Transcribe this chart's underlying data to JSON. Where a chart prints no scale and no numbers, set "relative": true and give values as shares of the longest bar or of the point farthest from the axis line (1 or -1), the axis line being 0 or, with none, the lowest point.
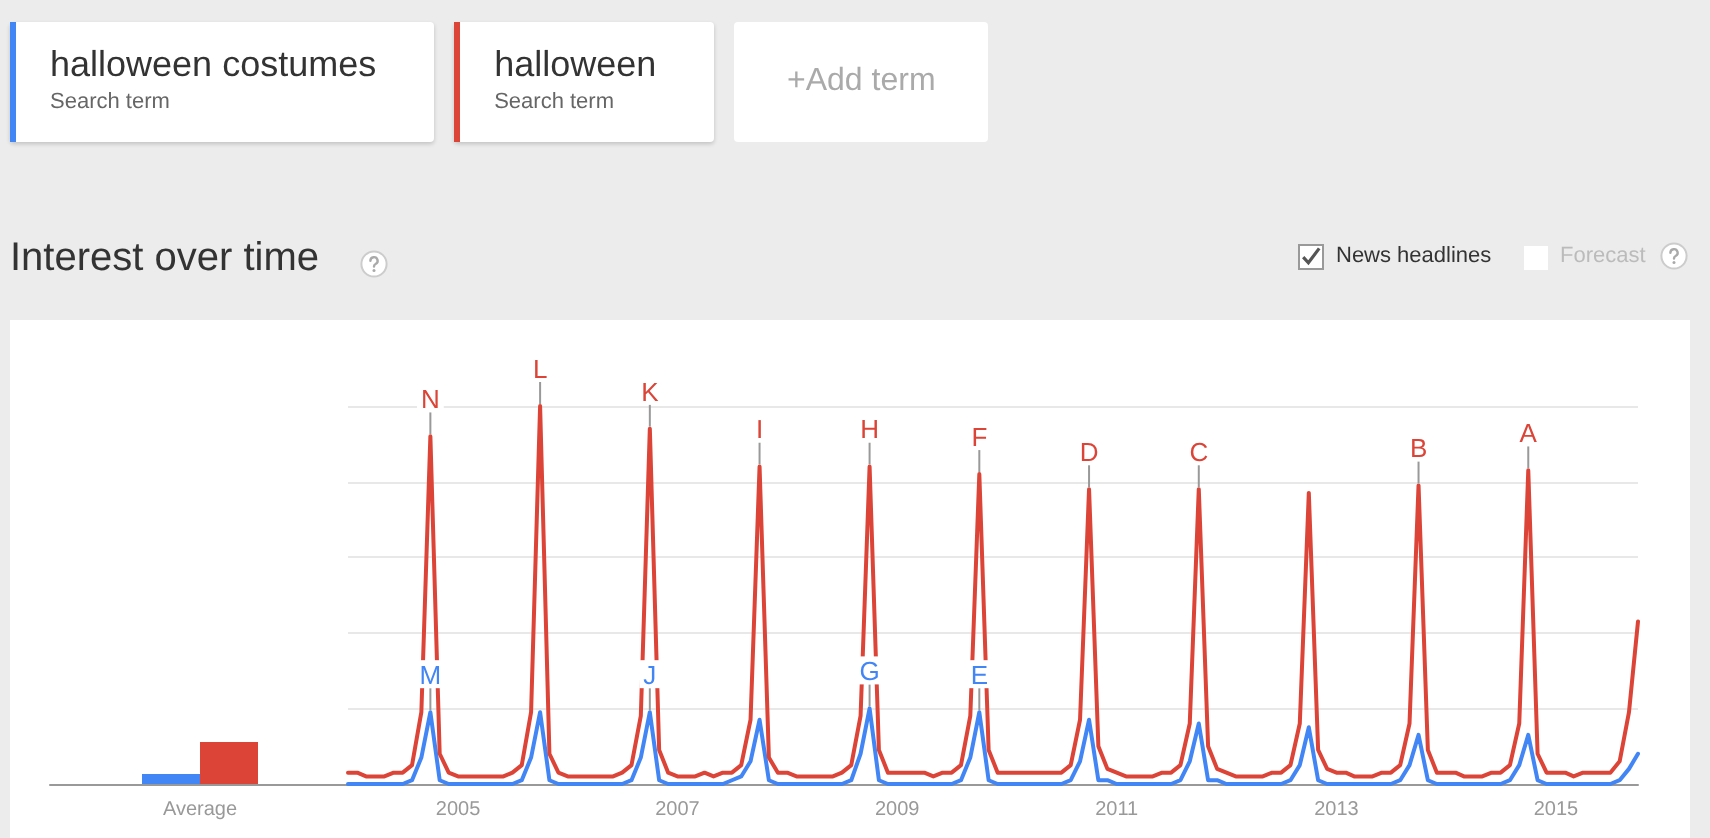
{
  "chart_data": [
    {
      "type": "bar",
      "categories": [
        "Average"
      ],
      "relative": true,
      "series": [
        {
          "color": "#4285f4",
          "values": [
            0.24
          ]
        },
        {
          "color": "#db4437",
          "values": [
            1
          ]
        }
      ]
    },
    {
      "type": "line",
      "title": "Interest over time",
      "relative": true,
      "grid": "y",
      "marker": "none",
      "legend": "top left",
      "annotations": [
        "Search term",
        "Search term",
        "+Add term",
        "News headlines",
        "Forecast",
        {
          "text": "N",
          "x": "2004-10",
          "y": 0.92
        },
        {
          "text": "M",
          "x": "2004-10",
          "y": 0.19
        },
        {
          "text": "L",
          "x": "2005-10",
          "y": 1.0
        },
        {
          "text": "K",
          "x": "2006-10",
          "y": 0.94
        },
        {
          "text": "J",
          "x": "2006-10",
          "y": 0.19
        },
        {
          "text": "I",
          "x": "2007-10",
          "y": 0.84
        },
        {
          "text": "H",
          "x": "2008-10",
          "y": 0.84
        },
        {
          "text": "G",
          "x": "2008-10",
          "y": 0.2
        },
        {
          "text": "F",
          "x": "2009-10",
          "y": 0.82
        },
        {
          "text": "E",
          "x": "2009-10",
          "y": 0.19
        },
        {
          "text": "D",
          "x": "2010-10",
          "y": 0.78
        },
        {
          "text": "C",
          "x": "2011-10",
          "y": 0.78
        },
        {
          "text": "B",
          "x": "2013-10",
          "y": 0.79
        },
        {
          "text": "A",
          "x": "2014-10",
          "y": 0.83
        }
      ],
      "xlim": [
        "2004-01",
        "2015-10"
      ],
      "xticks": [
        "2005",
        "2007",
        "2009",
        "2011",
        "2013",
        "2015"
      ],
      "x": [
        "2004-01",
        "2004-02",
        "2004-03",
        "2004-04",
        "2004-05",
        "2004-06",
        "2004-07",
        "2004-08",
        "2004-09",
        "2004-10",
        "2004-11",
        "2004-12",
        "2005-01",
        "2005-02",
        "2005-03",
        "2005-04",
        "2005-05",
        "2005-06",
        "2005-07",
        "2005-08",
        "2005-09",
        "2005-10",
        "2005-11",
        "2005-12",
        "2006-01",
        "2006-02",
        "2006-03",
        "2006-04",
        "2006-05",
        "2006-06",
        "2006-07",
        "2006-08",
        "2006-09",
        "2006-10",
        "2006-11",
        "2006-12",
        "2007-01",
        "2007-02",
        "2007-03",
        "2007-04",
        "2007-05",
        "2007-06",
        "2007-07",
        "2007-08",
        "2007-09",
        "2007-10",
        "2007-11",
        "2007-12",
        "2008-01",
        "2008-02",
        "2008-03",
        "2008-04",
        "2008-05",
        "2008-06",
        "2008-07",
        "2008-08",
        "2008-09",
        "2008-10",
        "2008-11",
        "2008-12",
        "2009-01",
        "2009-02",
        "2009-03",
        "2009-04",
        "2009-05",
        "2009-06",
        "2009-07",
        "2009-08",
        "2009-09",
        "2009-10",
        "2009-11",
        "2009-12",
        "2010-01",
        "2010-02",
        "2010-03",
        "2010-04",
        "2010-05",
        "2010-06",
        "2010-07",
        "2010-08",
        "2010-09",
        "2010-10",
        "2010-11",
        "2010-12",
        "2011-01",
        "2011-02",
        "2011-03",
        "2011-04",
        "2011-05",
        "2011-06",
        "2011-07",
        "2011-08",
        "2011-09",
        "2011-10",
        "2011-11",
        "2011-12",
        "2012-01",
        "2012-02",
        "2012-03",
        "2012-04",
        "2012-05",
        "2012-06",
        "2012-07",
        "2012-08",
        "2012-09",
        "2012-10",
        "2012-11",
        "2012-12",
        "2013-01",
        "2013-02",
        "2013-03",
        "2013-04",
        "2013-05",
        "2013-06",
        "2013-07",
        "2013-08",
        "2013-09",
        "2013-10",
        "2013-11",
        "2013-12",
        "2014-01",
        "2014-02",
        "2014-03",
        "2014-04",
        "2014-05",
        "2014-06",
        "2014-07",
        "2014-08",
        "2014-09",
        "2014-10",
        "2014-11",
        "2014-12",
        "2015-01",
        "2015-02",
        "2015-03",
        "2015-04",
        "2015-05",
        "2015-06",
        "2015-07",
        "2015-08",
        "2015-09",
        "2015-10"
      ],
      "series": [
        {
          "name": "halloween costumes",
          "color": "#4285f4",
          "values": [
            0,
            0,
            0,
            0,
            0,
            0,
            0,
            0.01,
            0.07,
            0.19,
            0.01,
            0,
            0,
            0,
            0,
            0,
            0,
            0,
            0,
            0.01,
            0.07,
            0.19,
            0.01,
            0,
            0,
            0,
            0,
            0,
            0,
            0,
            0,
            0.01,
            0.07,
            0.19,
            0.01,
            0,
            0,
            0,
            0,
            0,
            0,
            0,
            0.01,
            0.02,
            0.06,
            0.17,
            0.01,
            0,
            0,
            0,
            0,
            0,
            0,
            0,
            0,
            0.01,
            0.08,
            0.2,
            0.01,
            0,
            0,
            0,
            0,
            0,
            0,
            0,
            0,
            0.01,
            0.07,
            0.19,
            0.01,
            0,
            0,
            0,
            0,
            0,
            0,
            0,
            0,
            0.01,
            0.06,
            0.17,
            0.01,
            0.01,
            0,
            0,
            0,
            0,
            0,
            0,
            0,
            0.01,
            0.06,
            0.16,
            0.01,
            0.01,
            0,
            0,
            0,
            0,
            0,
            0,
            0,
            0.01,
            0.05,
            0.15,
            0.01,
            0,
            0,
            0,
            0,
            0,
            0,
            0,
            0,
            0.01,
            0.05,
            0.13,
            0.01,
            0,
            0,
            0,
            0,
            0,
            0,
            0,
            0,
            0.01,
            0.05,
            0.13,
            0.01,
            0,
            0,
            0,
            0,
            0,
            0,
            0,
            0,
            0.01,
            0.04,
            0.08
          ]
        },
        {
          "name": "halloween",
          "color": "#db4437",
          "values": [
            0.03,
            0.03,
            0.02,
            0.02,
            0.02,
            0.03,
            0.03,
            0.05,
            0.19,
            0.92,
            0.08,
            0.03,
            0.02,
            0.02,
            0.02,
            0.02,
            0.02,
            0.02,
            0.03,
            0.05,
            0.19,
            1.0,
            0.08,
            0.03,
            0.02,
            0.02,
            0.02,
            0.02,
            0.02,
            0.02,
            0.03,
            0.05,
            0.18,
            0.94,
            0.09,
            0.03,
            0.02,
            0.02,
            0.02,
            0.03,
            0.02,
            0.03,
            0.03,
            0.05,
            0.17,
            0.84,
            0.07,
            0.03,
            0.03,
            0.02,
            0.02,
            0.02,
            0.02,
            0.02,
            0.03,
            0.05,
            0.18,
            0.84,
            0.09,
            0.03,
            0.03,
            0.03,
            0.03,
            0.03,
            0.02,
            0.03,
            0.03,
            0.05,
            0.18,
            0.82,
            0.09,
            0.03,
            0.03,
            0.03,
            0.03,
            0.03,
            0.03,
            0.03,
            0.03,
            0.05,
            0.17,
            0.78,
            0.1,
            0.04,
            0.03,
            0.02,
            0.02,
            0.02,
            0.02,
            0.03,
            0.03,
            0.05,
            0.16,
            0.78,
            0.1,
            0.04,
            0.03,
            0.02,
            0.02,
            0.02,
            0.02,
            0.03,
            0.03,
            0.05,
            0.16,
            0.77,
            0.09,
            0.04,
            0.03,
            0.03,
            0.02,
            0.02,
            0.02,
            0.03,
            0.03,
            0.05,
            0.16,
            0.79,
            0.09,
            0.03,
            0.03,
            0.03,
            0.02,
            0.02,
            0.02,
            0.03,
            0.03,
            0.05,
            0.16,
            0.83,
            0.08,
            0.03,
            0.03,
            0.03,
            0.02,
            0.03,
            0.03,
            0.03,
            0.03,
            0.06,
            0.19,
            0.43
          ]
        }
      ]
    }
  ]
}
